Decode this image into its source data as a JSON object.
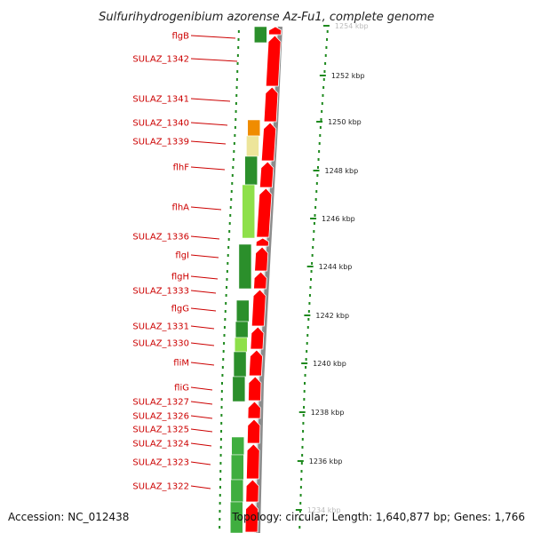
{
  "header": {
    "title": "Sulfurihydrogenibium azorense Az-Fu1, complete genome"
  },
  "footer": {
    "accession": "Accession: NC_012438",
    "summary": "Topology: circular; Length: 1,640,877 bp; Genes: 1,766"
  },
  "colors": {
    "feature_red": "#ff0000",
    "label_red": "#cc0000",
    "dark_green": "#2b8f2b",
    "green": "#3fae3f",
    "light_green": "#8ee04a",
    "orange": "#f08c00",
    "pale_yellow": "#ede59a",
    "backbone_grey": "#8c8c8c",
    "dotted_green": "#1f8a1f"
  },
  "genes": [
    "flgB",
    "SULAZ_1342",
    "SULAZ_1341",
    "SULAZ_1340",
    "SULAZ_1339",
    "flhF",
    "flhA",
    "SULAZ_1336",
    "flgI",
    "flgH",
    "SULAZ_1333",
    "flgG",
    "SULAZ_1331",
    "SULAZ_1330",
    "fliM",
    "fliG",
    "SULAZ_1327",
    "SULAZ_1326",
    "SULAZ_1325",
    "SULAZ_1324",
    "SULAZ_1323",
    "SULAZ_1322"
  ],
  "scale_labels": [
    "1254 kbp",
    "1252 kbp",
    "1250 kbp",
    "1248 kbp",
    "1246 kbp",
    "1244 kbp",
    "1242 kbp",
    "1240 kbp",
    "1238 kbp",
    "1236 kbp",
    "1234 kbp"
  ]
}
